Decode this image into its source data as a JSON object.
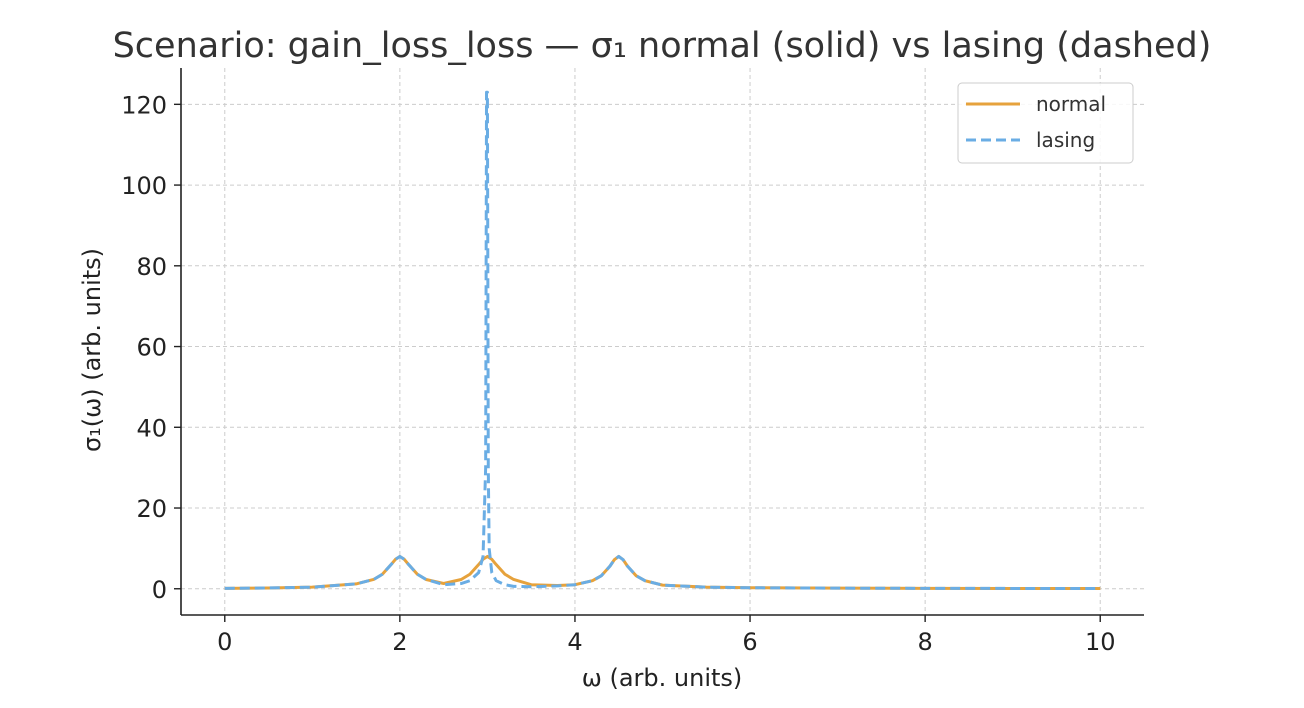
{
  "chart_data": {
    "type": "line",
    "title": "Scenario: gain_loss_loss — σ₁ normal (solid) vs lasing (dashed)",
    "xlabel": "ω (arb. units)",
    "ylabel": "σ₁(ω) (arb. units)",
    "xlim": [
      -0.5,
      10.5
    ],
    "ylim": [
      -6.5,
      129
    ],
    "xticks": [
      0,
      2,
      4,
      6,
      8,
      10
    ],
    "yticks": [
      0,
      20,
      40,
      60,
      80,
      100,
      120
    ],
    "xtick_labels": [
      "0",
      "2",
      "4",
      "6",
      "8",
      "10"
    ],
    "ytick_labels": [
      "0",
      "20",
      "40",
      "60",
      "80",
      "100",
      "120"
    ],
    "grid": true,
    "legend": "top-right",
    "series": [
      {
        "name": "normal",
        "color": "#e6a23c",
        "style": "solid",
        "x": [
          0,
          0.5,
          1.0,
          1.5,
          1.7,
          1.8,
          1.9,
          1.95,
          2.0,
          2.05,
          2.1,
          2.2,
          2.3,
          2.5,
          2.7,
          2.8,
          2.9,
          2.95,
          3.0,
          3.05,
          3.1,
          3.2,
          3.3,
          3.5,
          3.8,
          4.0,
          4.2,
          4.3,
          4.4,
          4.45,
          4.5,
          4.55,
          4.6,
          4.7,
          4.8,
          5.0,
          5.5,
          6.0,
          7.0,
          8.0,
          9.0,
          10.0
        ],
        "y": [
          0.1,
          0.2,
          0.4,
          1.2,
          2.3,
          3.6,
          6.0,
          7.3,
          8.0,
          7.3,
          6.0,
          3.6,
          2.3,
          1.3,
          2.3,
          3.6,
          6.0,
          7.3,
          8.0,
          7.3,
          6.0,
          3.6,
          2.3,
          1.0,
          0.8,
          1.0,
          2.0,
          3.2,
          5.6,
          7.2,
          8.0,
          7.2,
          5.6,
          3.2,
          2.0,
          0.9,
          0.4,
          0.25,
          0.15,
          0.1,
          0.08,
          0.06
        ]
      },
      {
        "name": "lasing",
        "color": "#6aade4",
        "style": "dashed",
        "x": [
          0,
          0.5,
          1.0,
          1.5,
          1.7,
          1.8,
          1.9,
          1.95,
          2.0,
          2.05,
          2.1,
          2.2,
          2.3,
          2.5,
          2.7,
          2.8,
          2.9,
          2.95,
          2.98,
          2.99,
          3.0,
          3.01,
          3.02,
          3.05,
          3.1,
          3.2,
          3.3,
          3.5,
          3.8,
          4.0,
          4.2,
          4.3,
          4.4,
          4.45,
          4.5,
          4.55,
          4.6,
          4.7,
          4.8,
          5.0,
          5.5,
          6.0,
          7.0,
          8.0,
          9.0,
          10.0
        ],
        "y": [
          0.1,
          0.2,
          0.4,
          1.2,
          2.3,
          3.6,
          6.0,
          7.3,
          8.0,
          7.3,
          6.0,
          3.6,
          2.3,
          1.0,
          1.3,
          2.0,
          4.0,
          8.0,
          30,
          123,
          123,
          30,
          10,
          4.0,
          2.0,
          1.0,
          0.6,
          0.5,
          0.7,
          1.0,
          2.0,
          3.2,
          5.6,
          7.2,
          8.0,
          7.2,
          5.6,
          3.2,
          2.0,
          0.9,
          0.4,
          0.25,
          0.15,
          0.1,
          0.08,
          0.06
        ]
      }
    ]
  }
}
